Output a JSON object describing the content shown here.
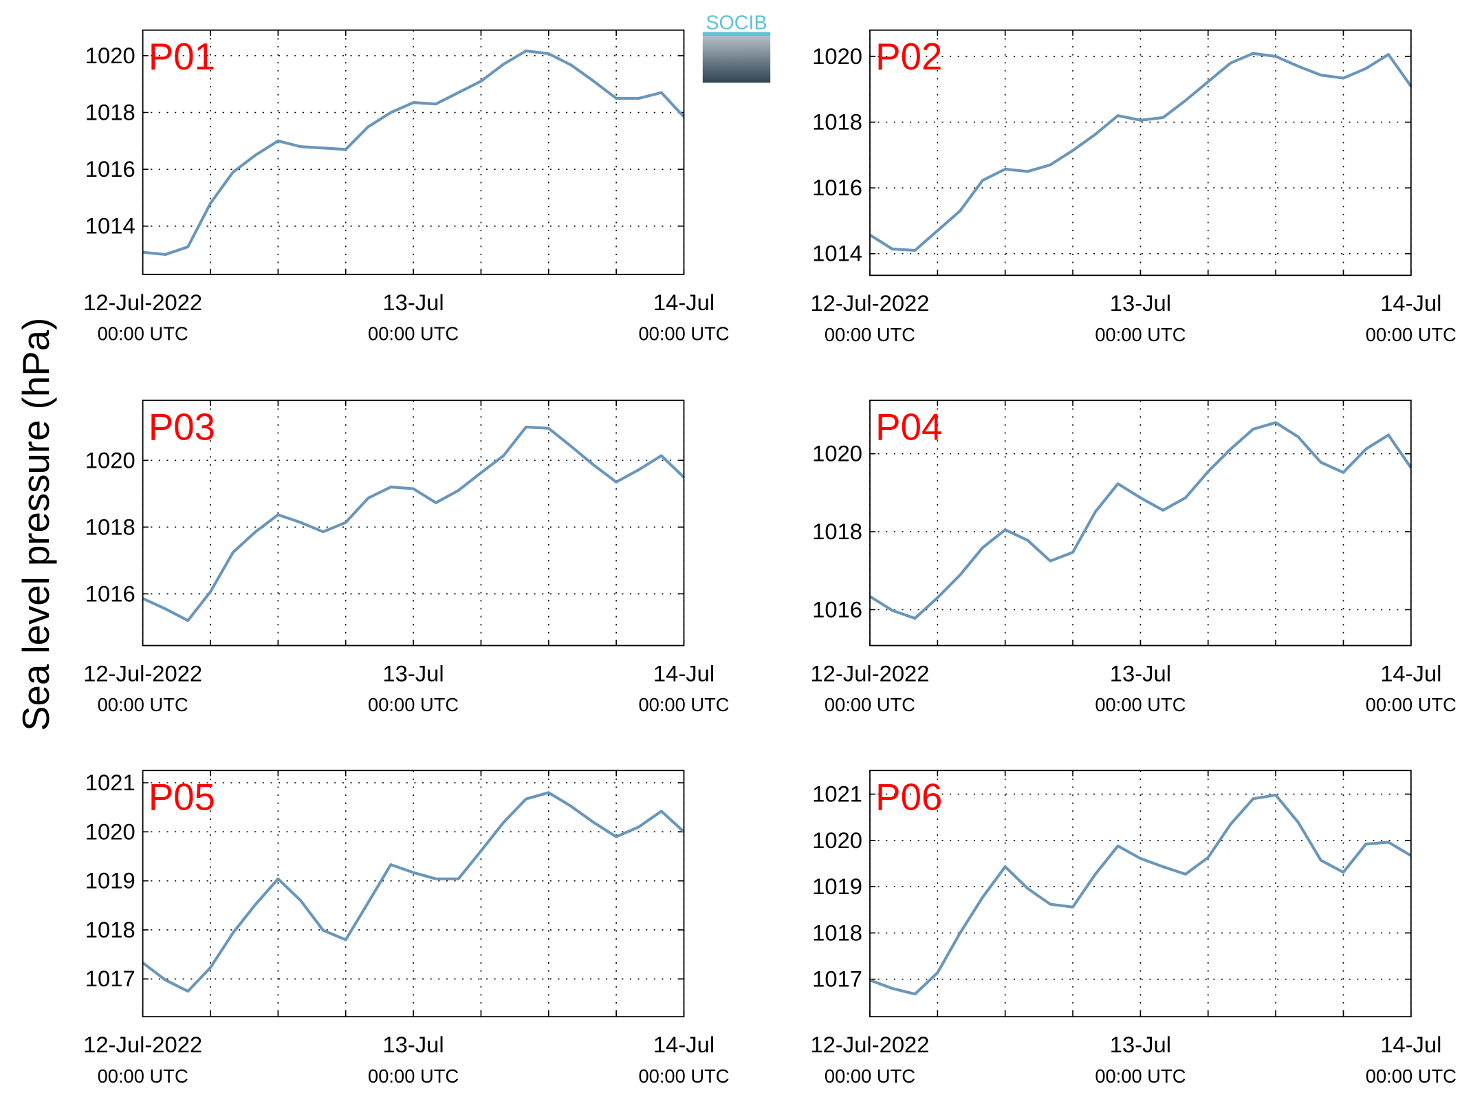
{
  "ylabel": "Sea level pressure (hPa)",
  "logo": "SOCIB",
  "chart_data": [
    {
      "type": "line",
      "title": "P01",
      "color": "#6a96ba",
      "grid": true,
      "x": [
        0,
        2,
        4,
        6,
        8,
        10,
        12,
        14,
        16,
        18,
        20,
        22,
        24,
        26,
        28,
        30,
        32,
        34,
        36,
        38,
        40,
        42,
        44,
        46,
        48
      ],
      "values": [
        1013.08,
        1013.0,
        1013.27,
        1014.8,
        1015.9,
        1016.5,
        1017.0,
        1016.8,
        1016.75,
        1016.7,
        1017.5,
        1018.0,
        1018.35,
        1018.3,
        1018.7,
        1019.1,
        1019.7,
        1020.17,
        1020.07,
        1019.67,
        1019.1,
        1018.5,
        1018.5,
        1018.7,
        1017.85
      ],
      "xlim": [
        0,
        48
      ],
      "xticks": [
        {
          "value": 0,
          "label": "12-Jul-2022",
          "sublabel": "00:00 UTC"
        },
        {
          "value": 24,
          "label": "13-Jul",
          "sublabel": "00:00 UTC"
        },
        {
          "value": 48,
          "label": "14-Jul",
          "sublabel": "00:00 UTC"
        }
      ],
      "xminorticks": [
        6,
        12,
        18,
        30,
        36,
        42
      ],
      "ylim": [
        1012.3,
        1020.9
      ],
      "yticks": [
        1014,
        1016,
        1018,
        1020
      ]
    },
    {
      "type": "line",
      "title": "P02",
      "color": "#6a96ba",
      "grid": true,
      "x": [
        0,
        2,
        4,
        6,
        8,
        10,
        12,
        14,
        16,
        18,
        20,
        22,
        24,
        26,
        28,
        30,
        32,
        34,
        36,
        38,
        40,
        42,
        44,
        46,
        48
      ],
      "values": [
        1014.57,
        1014.14,
        1014.1,
        1014.7,
        1015.3,
        1016.23,
        1016.57,
        1016.5,
        1016.7,
        1017.14,
        1017.63,
        1018.2,
        1018.06,
        1018.14,
        1018.66,
        1019.23,
        1019.8,
        1020.09,
        1020.0,
        1019.7,
        1019.43,
        1019.34,
        1019.63,
        1020.06,
        1019.09
      ],
      "xlim": [
        0,
        48
      ],
      "xticks": [
        {
          "value": 0,
          "label": "12-Jul-2022",
          "sublabel": "00:00 UTC"
        },
        {
          "value": 24,
          "label": "13-Jul",
          "sublabel": "00:00 UTC"
        },
        {
          "value": 48,
          "label": "14-Jul",
          "sublabel": "00:00 UTC"
        }
      ],
      "xminorticks": [
        6,
        12,
        18,
        30,
        36,
        42
      ],
      "ylim": [
        1013.34,
        1020.8
      ],
      "yticks": [
        1014,
        1016,
        1018,
        1020
      ]
    },
    {
      "type": "line",
      "title": "P03",
      "color": "#6a96ba",
      "grid": true,
      "x": [
        0,
        2,
        4,
        6,
        8,
        10,
        12,
        14,
        16,
        18,
        20,
        22,
        24,
        26,
        28,
        30,
        32,
        34,
        36,
        38,
        40,
        42,
        44,
        46,
        48
      ],
      "values": [
        1015.86,
        1015.55,
        1015.2,
        1016.06,
        1017.24,
        1017.86,
        1018.37,
        1018.14,
        1017.86,
        1018.14,
        1018.87,
        1019.2,
        1019.15,
        1018.73,
        1019.1,
        1019.63,
        1020.14,
        1021.0,
        1020.96,
        1020.42,
        1019.86,
        1019.35,
        1019.72,
        1020.14,
        1019.49
      ],
      "xlim": [
        0,
        48
      ],
      "xticks": [
        {
          "value": 0,
          "label": "12-Jul-2022",
          "sublabel": "00:00 UTC"
        },
        {
          "value": 24,
          "label": "13-Jul",
          "sublabel": "00:00 UTC"
        },
        {
          "value": 48,
          "label": "14-Jul",
          "sublabel": "00:00 UTC"
        }
      ],
      "xminorticks": [
        6,
        12,
        18,
        30,
        36,
        42
      ],
      "ylim": [
        1014.45,
        1021.8
      ],
      "yticks": [
        1016,
        1018,
        1020
      ]
    },
    {
      "type": "line",
      "title": "P04",
      "color": "#6a96ba",
      "grid": true,
      "x": [
        0,
        2,
        4,
        6,
        8,
        10,
        12,
        14,
        16,
        18,
        20,
        22,
        24,
        26,
        28,
        30,
        32,
        34,
        36,
        38,
        40,
        42,
        44,
        46,
        48
      ],
      "values": [
        1016.34,
        1015.98,
        1015.78,
        1016.31,
        1016.89,
        1017.59,
        1018.05,
        1017.78,
        1017.25,
        1017.47,
        1018.51,
        1019.23,
        1018.87,
        1018.55,
        1018.87,
        1019.54,
        1020.12,
        1020.63,
        1020.8,
        1020.43,
        1019.78,
        1019.52,
        1020.12,
        1020.48,
        1019.64
      ],
      "xlim": [
        0,
        48
      ],
      "xticks": [
        {
          "value": 0,
          "label": "12-Jul-2022",
          "sublabel": "00:00 UTC"
        },
        {
          "value": 24,
          "label": "13-Jul",
          "sublabel": "00:00 UTC"
        },
        {
          "value": 48,
          "label": "14-Jul",
          "sublabel": "00:00 UTC"
        }
      ],
      "xminorticks": [
        6,
        12,
        18,
        30,
        36,
        42
      ],
      "ylim": [
        1015.08,
        1021.37
      ],
      "yticks": [
        1016,
        1018,
        1020
      ]
    },
    {
      "type": "line",
      "title": "P05",
      "color": "#6a96ba",
      "grid": true,
      "x": [
        0,
        2,
        4,
        6,
        8,
        10,
        12,
        14,
        16,
        18,
        20,
        22,
        24,
        26,
        28,
        30,
        32,
        34,
        36,
        38,
        40,
        42,
        44,
        46,
        48
      ],
      "values": [
        1017.33,
        1016.98,
        1016.75,
        1017.23,
        1017.94,
        1018.52,
        1019.04,
        1018.6,
        1017.99,
        1017.8,
        1018.56,
        1019.33,
        1019.17,
        1019.04,
        1019.04,
        1019.61,
        1020.19,
        1020.67,
        1020.8,
        1020.52,
        1020.19,
        1019.9,
        1020.1,
        1020.42,
        1020.0
      ],
      "xlim": [
        0,
        48
      ],
      "xticks": [
        {
          "value": 0,
          "label": "12-Jul-2022",
          "sublabel": "00:00 UTC"
        },
        {
          "value": 24,
          "label": "13-Jul",
          "sublabel": "00:00 UTC"
        },
        {
          "value": 48,
          "label": "14-Jul",
          "sublabel": "00:00 UTC"
        }
      ],
      "xminorticks": [
        6,
        12,
        18,
        30,
        36,
        42
      ],
      "ylim": [
        1016.23,
        1021.25
      ],
      "yticks": [
        1017,
        1018,
        1019,
        1020,
        1021
      ]
    },
    {
      "type": "line",
      "title": "P06",
      "color": "#6a96ba",
      "grid": true,
      "x": [
        0,
        2,
        4,
        6,
        8,
        10,
        12,
        14,
        16,
        18,
        20,
        22,
        24,
        26,
        28,
        30,
        32,
        34,
        36,
        38,
        40,
        42,
        44,
        46,
        48
      ],
      "values": [
        1016.98,
        1016.8,
        1016.68,
        1017.14,
        1018.0,
        1018.77,
        1019.43,
        1018.96,
        1018.62,
        1018.56,
        1019.27,
        1019.88,
        1019.61,
        1019.43,
        1019.27,
        1019.63,
        1020.35,
        1020.9,
        1020.98,
        1020.39,
        1019.57,
        1019.31,
        1019.92,
        1019.96,
        1019.67
      ],
      "xlim": [
        0,
        48
      ],
      "xticks": [
        {
          "value": 0,
          "label": "12-Jul-2022",
          "sublabel": "00:00 UTC"
        },
        {
          "value": 24,
          "label": "13-Jul",
          "sublabel": "00:00 UTC"
        },
        {
          "value": 48,
          "label": "14-Jul",
          "sublabel": "00:00 UTC"
        }
      ],
      "xminorticks": [
        6,
        12,
        18,
        30,
        36,
        42
      ],
      "ylim": [
        1016.19,
        1021.51
      ],
      "yticks": [
        1017,
        1018,
        1019,
        1020,
        1021
      ]
    }
  ]
}
